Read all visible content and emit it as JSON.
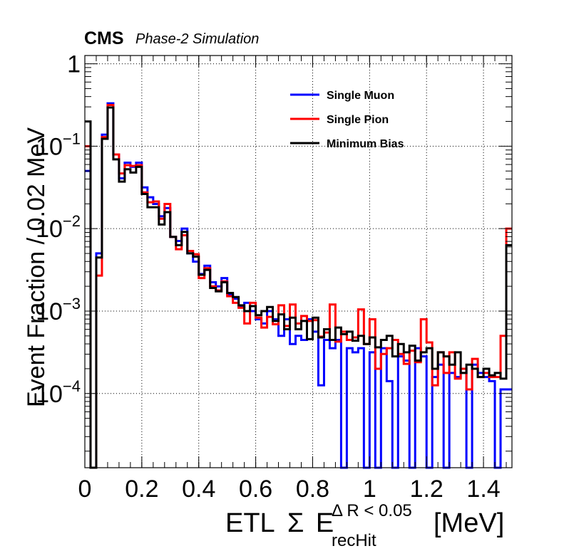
{
  "chart_data": {
    "type": "line",
    "style": "step histogram",
    "experiment": "CMS",
    "subtitle": "Phase-2 Simulation",
    "xlabel_parts": {
      "prefix": "ETL",
      "sigma": "Σ",
      "var": "E",
      "sub": "recHit",
      "sup": "Δ R < 0.05",
      "unit": "[MeV]"
    },
    "ylabel": "Event Fraction / 0.02 MeV",
    "xlim": [
      0,
      1.5
    ],
    "ylim_log10": [
      -4.9,
      0.1
    ],
    "y_scale": "log",
    "grid": true,
    "legend_position": "top-right",
    "x_tick_labels": [
      "0",
      "0.2",
      "0.4",
      "0.6",
      "0.8",
      "1",
      "1.2",
      "1.4"
    ],
    "y_tick_labels": [
      {
        "base": "1",
        "exp": ""
      },
      {
        "base": "10",
        "exp": "−1"
      },
      {
        "base": "10",
        "exp": "−2"
      },
      {
        "base": "10",
        "exp": "−3"
      },
      {
        "base": "10",
        "exp": "−4"
      }
    ],
    "bin_width": 0.02,
    "floor_log10": -4.9,
    "series": [
      {
        "name": "Single Muon",
        "color": "#0000ff",
        "log10_values": [
          -1.3,
          -4.9,
          -2.3,
          -0.86,
          -0.48,
          -1.1,
          -1.39,
          -1.2,
          -1.25,
          -1.2,
          -1.5,
          -1.62,
          -1.7,
          -1.85,
          -1.75,
          -2.1,
          -2.15,
          -2.0,
          -2.3,
          -2.4,
          -2.55,
          -2.45,
          -2.65,
          -2.7,
          -2.6,
          -2.8,
          -2.85,
          -2.95,
          -2.9,
          -3.0,
          -3.1,
          -3.15,
          -3.0,
          -3.1,
          -3.3,
          -3.1,
          -3.4,
          -3.3,
          -3.35,
          -3.1,
          -3.25,
          -3.9,
          -3.35,
          -3.45,
          -3.35,
          -4.9,
          -3.45,
          -3.5,
          -3.45,
          -4.9,
          -3.5,
          -4.9,
          -3.45,
          -3.85,
          -4.9,
          -3.55,
          -3.6,
          -4.9,
          -3.45,
          -3.55,
          -4.9,
          -3.8,
          -3.65,
          -4.9,
          -3.75,
          -3.8,
          -3.7,
          -4.9,
          -3.65,
          -3.75,
          -3.8,
          -3.85,
          -4.9,
          -3.95,
          -3.95
        ]
      },
      {
        "name": "Single Pion",
        "color": "#ff0000",
        "log10_values": [
          -1.0,
          -4.9,
          -2.57,
          -0.89,
          -0.5,
          -1.1,
          -1.33,
          -1.23,
          -1.24,
          -1.23,
          -1.56,
          -1.68,
          -1.67,
          -1.88,
          -1.7,
          -2.1,
          -2.25,
          -2.08,
          -2.27,
          -2.31,
          -2.6,
          -2.48,
          -2.7,
          -2.75,
          -2.64,
          -2.82,
          -2.9,
          -2.96,
          -3.15,
          -2.9,
          -3.08,
          -3.2,
          -3.07,
          -3.16,
          -2.93,
          -3.18,
          -2.92,
          -3.15,
          -3.06,
          -3.12,
          -3.11,
          -3.31,
          -3.26,
          -2.92,
          -3.37,
          -3.25,
          -3.35,
          -3.32,
          -2.98,
          -3.4,
          -3.1,
          -3.7,
          -3.52,
          -3.45,
          -3.35,
          -3.52,
          -3.64,
          -3.48,
          -3.62,
          -3.1,
          -3.38,
          -3.9,
          -3.5,
          -3.75,
          -3.5,
          -3.82,
          -3.7,
          -3.95,
          -3.58,
          -3.8,
          -3.75,
          -3.8,
          -3.8,
          -3.3,
          -2.0
        ]
      },
      {
        "name": "Minimum Bias",
        "color": "#000000",
        "log10_values": [
          -0.7,
          -4.9,
          -2.35,
          -0.91,
          -0.53,
          -1.16,
          -1.43,
          -1.28,
          -1.32,
          -1.25,
          -1.58,
          -1.74,
          -1.74,
          -1.95,
          -1.8,
          -2.1,
          -2.2,
          -2.04,
          -2.3,
          -2.34,
          -2.56,
          -2.5,
          -2.72,
          -2.76,
          -2.65,
          -2.78,
          -2.83,
          -2.93,
          -3.0,
          -2.94,
          -3.05,
          -3.0,
          -2.95,
          -3.12,
          -3.04,
          -3.22,
          -3.08,
          -3.22,
          -3.12,
          -3.34,
          -3.08,
          -3.32,
          -3.22,
          -3.35,
          -3.2,
          -3.28,
          -3.25,
          -3.36,
          -3.3,
          -3.4,
          -3.32,
          -3.44,
          -3.35,
          -3.3,
          -3.55,
          -3.4,
          -3.5,
          -3.42,
          -3.6,
          -3.5,
          -3.45,
          -3.7,
          -3.5,
          -3.55,
          -3.65,
          -3.5,
          -3.75,
          -3.65,
          -3.7,
          -3.8,
          -3.7,
          -3.78,
          -3.75,
          -3.82,
          -2.2
        ]
      }
    ]
  }
}
